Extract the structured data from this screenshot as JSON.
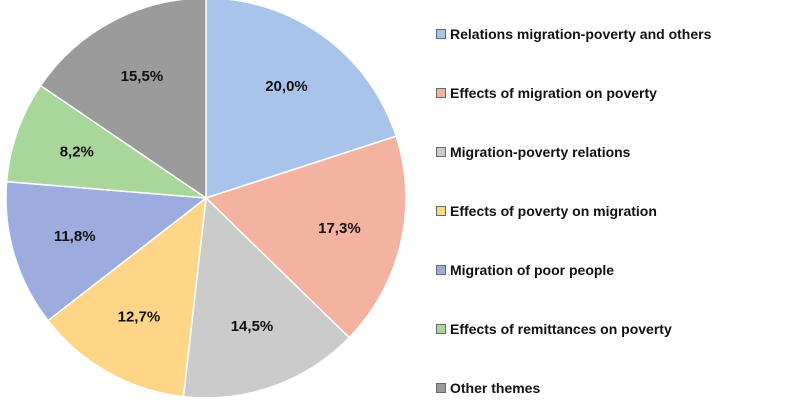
{
  "chart_data": {
    "type": "pie",
    "categories": [
      "Relations migration-poverty and others",
      "Effects of migration on poverty",
      "Migration-poverty relations",
      "Effects of poverty on migration",
      "Migration of poor people",
      "Effects of remittances on poverty",
      "Other themes"
    ],
    "values": [
      20.0,
      17.3,
      14.5,
      12.7,
      11.8,
      8.2,
      15.5
    ],
    "value_labels": [
      "20,0%",
      "17,3%",
      "14,5%",
      "12,7%",
      "11,8%",
      "8,2%",
      "15,5%"
    ],
    "colors": [
      "#a9c4eb",
      "#f4b3a0",
      "#cbcbcb",
      "#ffd687",
      "#9cacdf",
      "#a8d69b",
      "#9b9b9b"
    ],
    "start": "12 o'clock",
    "direction": "clockwise",
    "legend_position": "right"
  }
}
